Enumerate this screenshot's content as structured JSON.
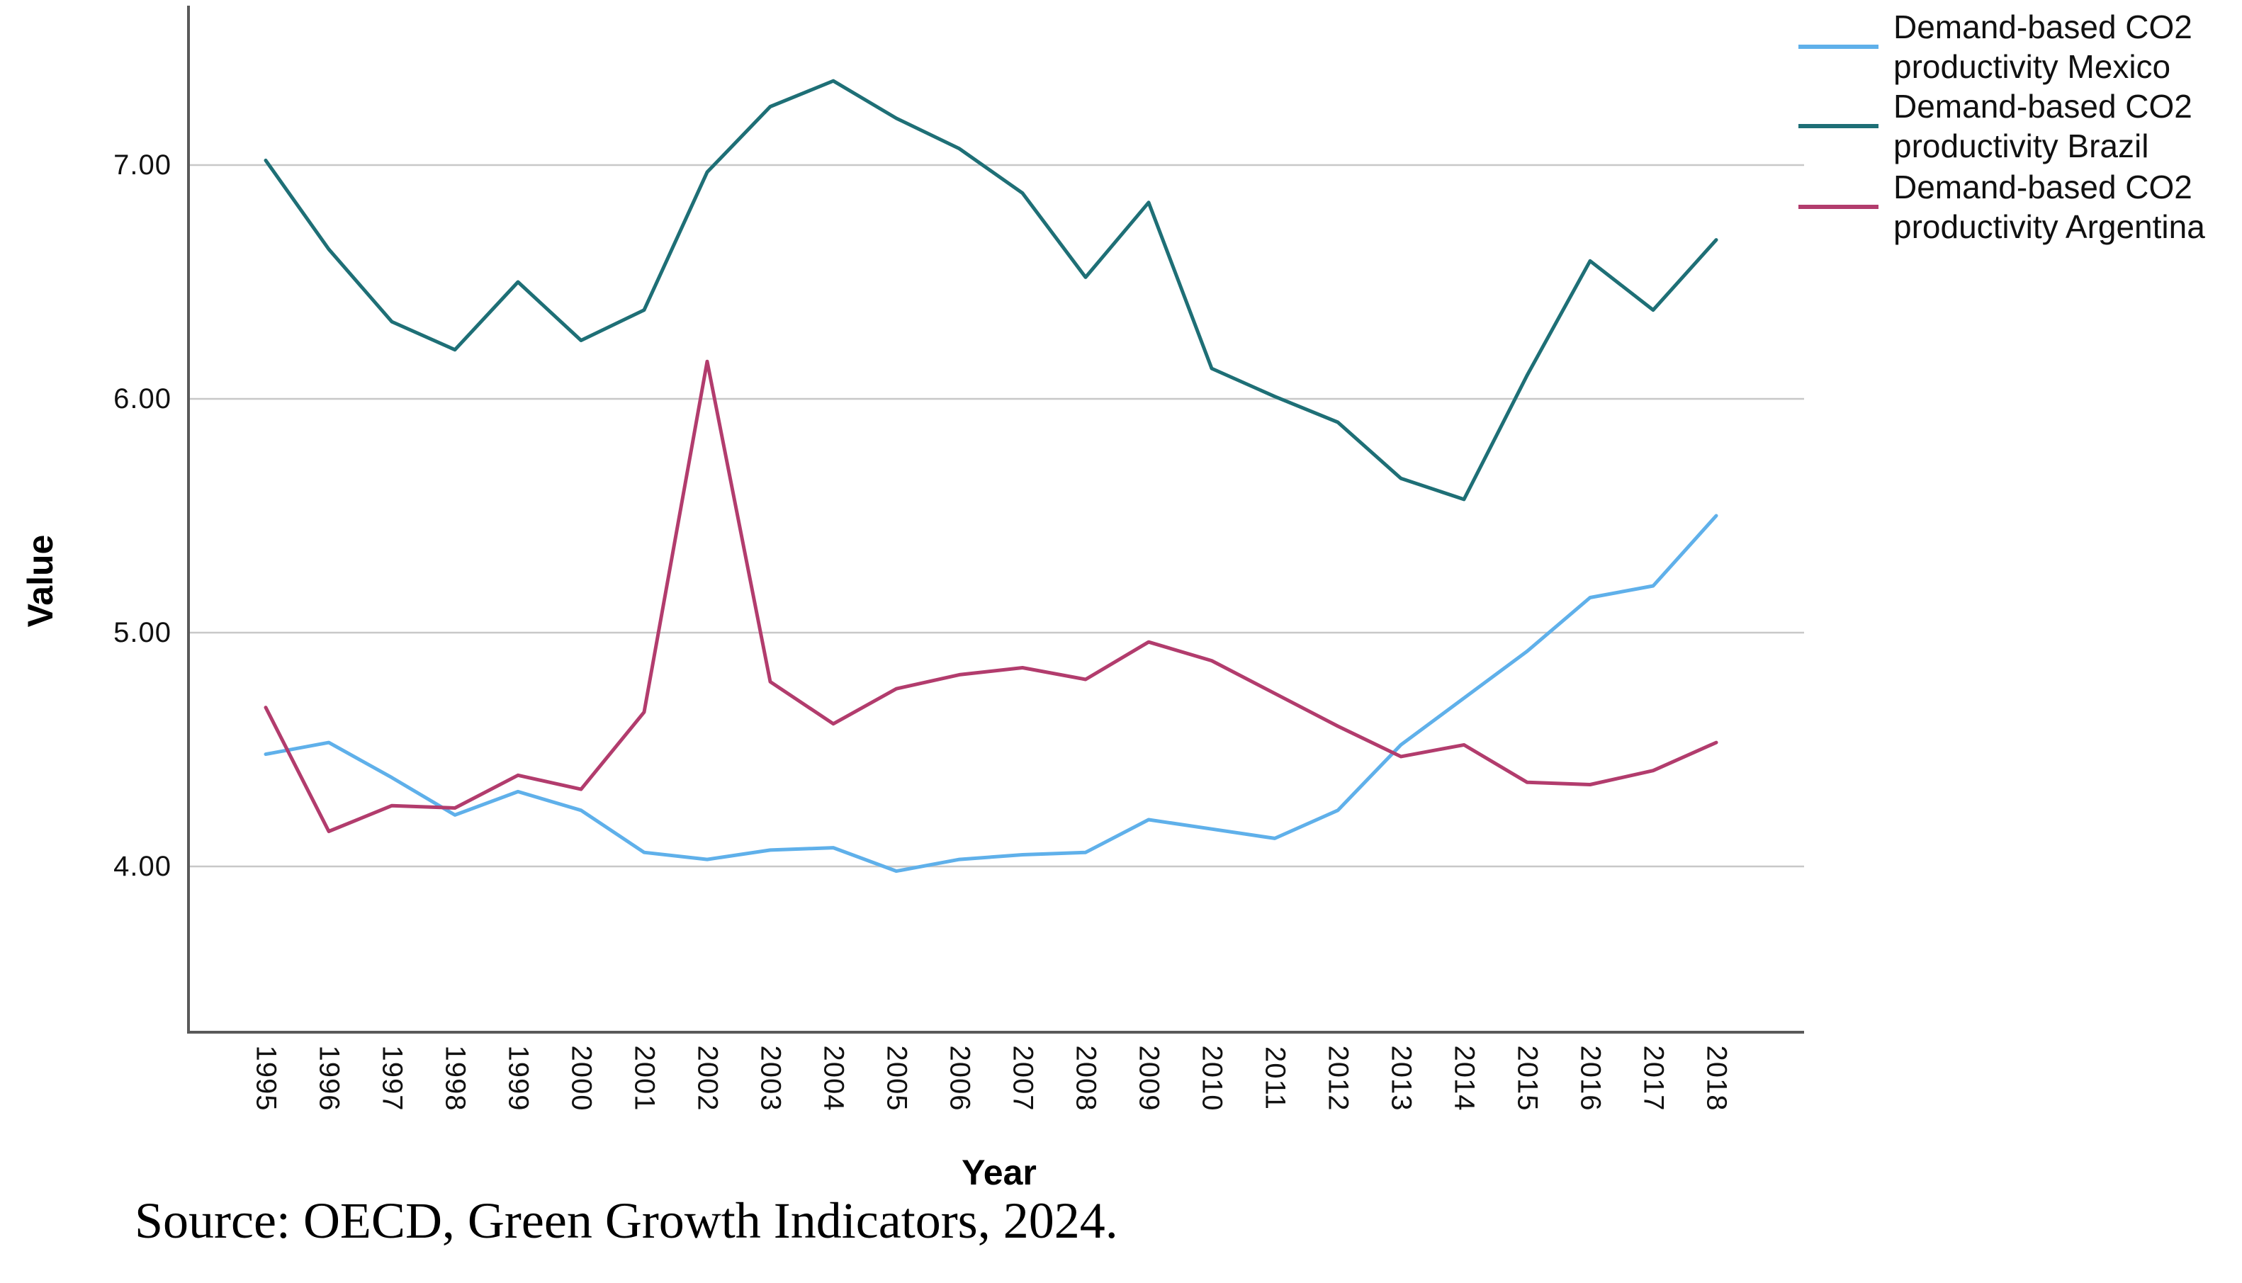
{
  "figure": {
    "source_note": "Source: OECD, Green Growth Indicators, 2024.",
    "colors": {
      "mexico_line": "#5fb0ea",
      "brazil_line": "#1e6f76",
      "argentina_line": "#b23c6d",
      "gridline": "#c8c8c8",
      "axis_line": "#5a5a5a",
      "text": "#111111"
    }
  },
  "chart_data": {
    "type": "line",
    "title": "",
    "xlabel": "Year",
    "ylabel": "Value",
    "grid": "horizontal gridlines on",
    "legend_position": "right",
    "ylim": [
      3.3,
      7.7
    ],
    "y_ticks": [
      {
        "label": "7.00",
        "value": 7.0
      },
      {
        "label": "6.00",
        "value": 6.0
      },
      {
        "label": "5.00",
        "value": 5.0
      },
      {
        "label": "4.00",
        "value": 4.0
      }
    ],
    "x": [
      1995,
      1996,
      1997,
      1998,
      1999,
      2000,
      2001,
      2002,
      2003,
      2004,
      2005,
      2006,
      2007,
      2008,
      2009,
      2010,
      2011,
      2012,
      2013,
      2014,
      2015,
      2016,
      2017,
      2018
    ],
    "series": [
      {
        "name": "Demand-based CO2 productivity Mexico",
        "legend_line1": "Demand-based CO2",
        "legend_line2": "productivity Mexico",
        "color_key": "mexico_line",
        "values": [
          4.48,
          4.53,
          4.38,
          4.22,
          4.32,
          4.24,
          4.06,
          4.03,
          4.07,
          4.08,
          3.98,
          4.03,
          4.05,
          4.06,
          4.2,
          4.16,
          4.12,
          4.24,
          4.52,
          4.72,
          4.92,
          5.15,
          5.2,
          5.5
        ]
      },
      {
        "name": "Demand-based CO2 productivity Brazil",
        "legend_line1": "Demand-based CO2",
        "legend_line2": "productivity Brazil",
        "color_key": "brazil_line",
        "values": [
          7.02,
          6.64,
          6.33,
          6.21,
          6.5,
          6.25,
          6.38,
          6.97,
          7.25,
          7.36,
          7.2,
          7.07,
          6.88,
          6.52,
          6.84,
          6.13,
          6.01,
          5.9,
          5.66,
          5.57,
          6.1,
          6.59,
          6.38,
          6.68
        ]
      },
      {
        "name": "Demand-based CO2 productivity Argentina",
        "legend_line1": "Demand-based CO2",
        "legend_line2": "productivity Argentina",
        "color_key": "argentina_line",
        "values": [
          4.68,
          4.15,
          4.26,
          4.25,
          4.39,
          4.33,
          4.66,
          6.16,
          4.79,
          4.61,
          4.76,
          4.82,
          4.85,
          4.8,
          4.96,
          4.88,
          4.74,
          4.6,
          4.47,
          4.52,
          4.36,
          4.35,
          4.41,
          4.53
        ]
      }
    ]
  }
}
